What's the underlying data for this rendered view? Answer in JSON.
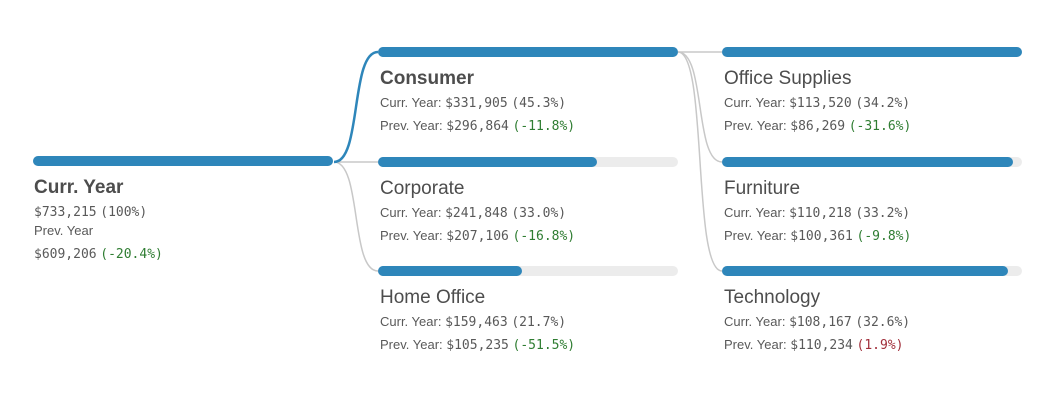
{
  "colors": {
    "bar": "#2e86ba",
    "track": "#ececec",
    "link_selected": "#2e86ba",
    "link_default": "#c8c8c8",
    "change_decrease": "#2f7d32",
    "change_increase": "#a12e3a"
  },
  "root": {
    "title": "Curr. Year",
    "value": "$733,215",
    "pct": "(100%)",
    "prev_label": "Prev. Year",
    "prev_value": "$609,206",
    "prev_change": "(-20.4%)",
    "fill": 1.0
  },
  "segments": [
    {
      "title": "Consumer",
      "bold": true,
      "curr_label": "Curr. Year:",
      "curr_value": "$331,905",
      "curr_pct": "(45.3%)",
      "prev_label": "Prev. Year:",
      "prev_value": "$296,864",
      "prev_change": "(-11.8%)",
      "direction": "down",
      "fill": 1.0
    },
    {
      "title": "Corporate",
      "bold": false,
      "curr_label": "Curr. Year:",
      "curr_value": "$241,848",
      "curr_pct": "(33.0%)",
      "prev_label": "Prev. Year:",
      "prev_value": "$207,106",
      "prev_change": "(-16.8%)",
      "direction": "down",
      "fill": 0.729
    },
    {
      "title": "Home Office",
      "bold": false,
      "curr_label": "Curr. Year:",
      "curr_value": "$159,463",
      "curr_pct": "(21.7%)",
      "prev_label": "Prev. Year:",
      "prev_value": "$105,235",
      "prev_change": "(-51.5%)",
      "direction": "down",
      "fill": 0.48
    }
  ],
  "categories": [
    {
      "title": "Office Supplies",
      "bold": false,
      "curr_label": "Curr. Year:",
      "curr_value": "$113,520",
      "curr_pct": "(34.2%)",
      "prev_label": "Prev. Year:",
      "prev_value": "$86,269",
      "prev_change": "(-31.6%)",
      "direction": "down",
      "fill": 1.0
    },
    {
      "title": "Furniture",
      "bold": false,
      "curr_label": "Curr. Year:",
      "curr_value": "$110,218",
      "curr_pct": "(33.2%)",
      "prev_label": "Prev. Year:",
      "prev_value": "$100,361",
      "prev_change": "(-9.8%)",
      "direction": "down",
      "fill": 0.97
    },
    {
      "title": "Technology",
      "bold": false,
      "curr_label": "Curr. Year:",
      "curr_value": "$108,167",
      "curr_pct": "(32.6%)",
      "prev_label": "Prev. Year:",
      "prev_value": "$110,234",
      "prev_change": "(1.9%)",
      "direction": "up",
      "fill": 0.953
    }
  ]
}
